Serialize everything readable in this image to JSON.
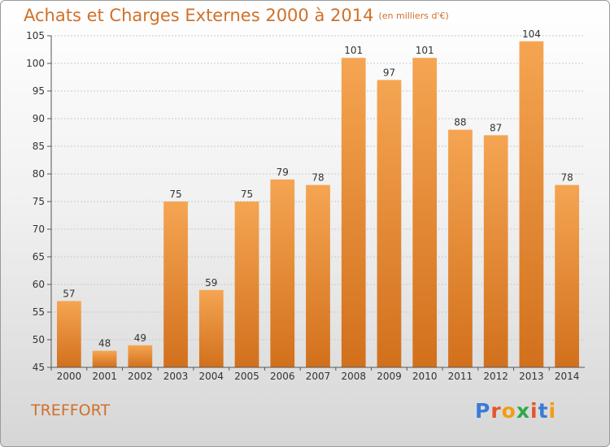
{
  "title": "Achats et Charges Externes 2000 à 2014",
  "title_unit": "(en milliers d'€)",
  "commune": "TREFFORT",
  "logo": {
    "text": "Proxiti",
    "colors": [
      "#3a7bd5",
      "#e2572c",
      "#f39c12",
      "#2eaa4a",
      "#e2572c",
      "#3a7bd5",
      "#f39c12"
    ]
  },
  "colors": {
    "accent": "#d0702a",
    "bar_top": "#f5a552",
    "bar_bottom": "#d2701c",
    "grid": "#c9c9c9"
  },
  "chart_data": {
    "type": "bar",
    "title": "Achats et Charges Externes 2000 à 2014",
    "subtitle": "(en milliers d'€)",
    "xlabel": "",
    "ylabel": "",
    "categories": [
      "2000",
      "2001",
      "2002",
      "2003",
      "2004",
      "2005",
      "2006",
      "2007",
      "2008",
      "2009",
      "2010",
      "2011",
      "2012",
      "2013",
      "2014"
    ],
    "values": [
      57,
      48,
      49,
      75,
      59,
      75,
      79,
      78,
      101,
      97,
      101,
      88,
      87,
      104,
      78
    ],
    "ylim": [
      45,
      105
    ],
    "yticks": [
      45,
      50,
      55,
      60,
      65,
      70,
      75,
      80,
      85,
      90,
      95,
      100,
      105
    ],
    "grid": true,
    "legend": "none"
  }
}
